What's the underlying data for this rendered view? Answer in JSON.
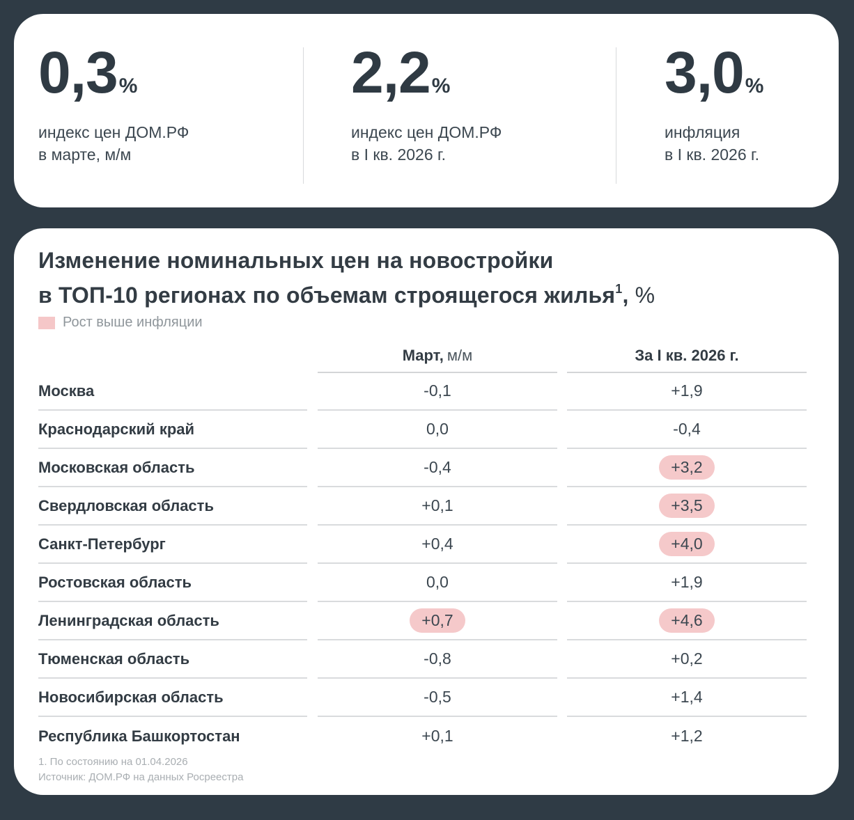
{
  "colors": {
    "background": "#2f3b45",
    "card": "#ffffff",
    "text_primary": "#2f3a43",
    "highlight": "#f5c9ca",
    "footnote": "#a9aeb2"
  },
  "kpis": [
    {
      "value": "0,3",
      "unit": "%",
      "label_line1": "индекс цен ДОМ.РФ",
      "label_line2": "в марте, м/м"
    },
    {
      "value": "2,2",
      "unit": "%",
      "label_line1": "индекс цен ДОМ.РФ",
      "label_line2": "в I кв. 2026 г."
    },
    {
      "value": "3,0",
      "unit": "%",
      "label_line1": "инфляция",
      "label_line2": "в I кв. 2026 г."
    }
  ],
  "table_section": {
    "title_line1": "Изменение номинальных цен на новостройки",
    "title_line2": "в ТОП-10 регионах по объемам строящегося жилья",
    "title_footnote_marker": "1",
    "title_suffix": ", ",
    "title_unit": "%",
    "legend": {
      "label": "Рост выше инфляции",
      "color": "#f5c7c8"
    },
    "columns": {
      "march_bold": "Март,",
      "march_unit": "м/м",
      "q1": "За I кв. 2026 г."
    },
    "rows": [
      {
        "region": "Москва",
        "march": "-0,1",
        "march_hl": false,
        "q1": "+1,9",
        "q1_hl": false
      },
      {
        "region": "Краснодарский край",
        "march": "0,0",
        "march_hl": false,
        "q1": "-0,4",
        "q1_hl": false
      },
      {
        "region": "Московская область",
        "march": "-0,4",
        "march_hl": false,
        "q1": "+3,2",
        "q1_hl": true
      },
      {
        "region": "Свердловская область",
        "march": "+0,1",
        "march_hl": false,
        "q1": "+3,5",
        "q1_hl": true
      },
      {
        "region": "Санкт-Петербург",
        "march": "+0,4",
        "march_hl": false,
        "q1": "+4,0",
        "q1_hl": true
      },
      {
        "region": "Ростовская область",
        "march": "0,0",
        "march_hl": false,
        "q1": "+1,9",
        "q1_hl": false
      },
      {
        "region": "Ленинградская область",
        "march": "+0,7",
        "march_hl": true,
        "q1": "+4,6",
        "q1_hl": true
      },
      {
        "region": "Тюменская область",
        "march": "-0,8",
        "march_hl": false,
        "q1": "+0,2",
        "q1_hl": false
      },
      {
        "region": "Новосибирская область",
        "march": "-0,5",
        "march_hl": false,
        "q1": "+1,4",
        "q1_hl": false
      },
      {
        "region": "Республика Башкортостан",
        "march": "+0,1",
        "march_hl": false,
        "q1": "+1,2",
        "q1_hl": false
      }
    ],
    "footnote_line1": "1.  По состоянию на 01.04.2026",
    "footnote_line2": "Источник: ДОМ.РФ на данных Росреестра"
  }
}
